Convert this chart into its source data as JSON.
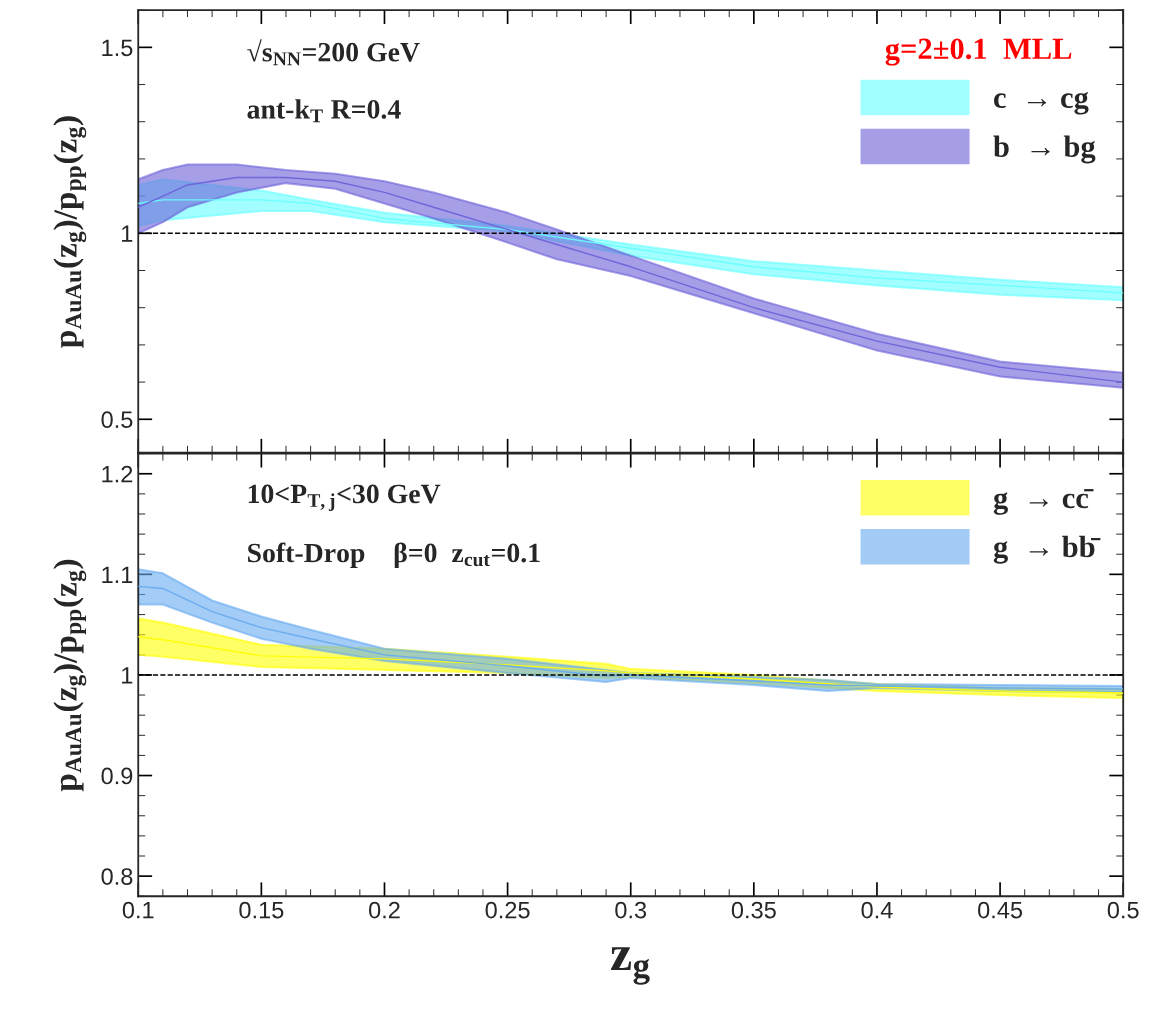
{
  "chart_data": [
    {
      "type": "line",
      "ylabel": "p$_{AuAu}$(z$_{g}$)/p$_{pp}$(z$_{g}$)",
      "legend_title": "g=2±0.1  MLL",
      "legend": "top right",
      "grid": false,
      "tick_labels": "y",
      "xlim": [
        0.1,
        0.5
      ],
      "xticks": [
        0.1,
        0.15,
        0.2,
        0.25,
        0.3,
        0.35,
        0.4,
        0.45,
        0.5
      ],
      "ylim": [
        0.41,
        1.6
      ],
      "yticks": [
        0.5,
        1,
        1.5
      ],
      "annotations": [
        "√s$_{NN}$=200 GeV",
        "ant-k$_{T}$ R=0.4"
      ],
      "ref_lines": [
        {
          "axis": "y",
          "value": 1,
          "line_style": "dashed",
          "color": "#000000"
        }
      ],
      "series": [
        {
          "name": "c  → cg",
          "color": "#66ffff",
          "values": [
            1.08,
            1.09,
            1.09,
            1.08,
            1.04,
            1.01,
            0.96,
            0.91,
            0.88,
            0.86,
            0.84
          ],
          "x": [
            0.1,
            0.11,
            0.15,
            0.17,
            0.2,
            0.25,
            0.3,
            0.35,
            0.4,
            0.45,
            0.5
          ],
          "lower": [
            1.02,
            1.035,
            1.06,
            1.06,
            1.03,
            1.005,
            0.94,
            0.89,
            0.86,
            0.835,
            0.82
          ],
          "upper": [
            1.13,
            1.145,
            1.115,
            1.09,
            1.055,
            1.02,
            0.97,
            0.925,
            0.9,
            0.875,
            0.855
          ]
        },
        {
          "name": "b  → bg",
          "color": "#6a5fd8",
          "values": [
            1.07,
            1.1,
            1.13,
            1.15,
            1.15,
            1.14,
            1.11,
            1.07,
            1.01,
            0.97,
            0.91,
            0.8,
            0.71,
            0.64,
            0.6
          ],
          "x": [
            0.1,
            0.11,
            0.12,
            0.14,
            0.16,
            0.18,
            0.2,
            0.22,
            0.25,
            0.27,
            0.3,
            0.35,
            0.4,
            0.45,
            0.5
          ],
          "lower": [
            1.0,
            1.03,
            1.07,
            1.11,
            1.135,
            1.12,
            1.08,
            1.04,
            0.975,
            0.93,
            0.885,
            0.785,
            0.685,
            0.615,
            0.585
          ],
          "upper": [
            1.145,
            1.17,
            1.185,
            1.185,
            1.17,
            1.16,
            1.14,
            1.11,
            1.055,
            1.01,
            0.94,
            0.825,
            0.73,
            0.655,
            0.625
          ]
        }
      ]
    },
    {
      "type": "line",
      "ylabel": "p$_{AuAu}$(z$_{g}$)/p$_{pp}$(z$_{g}$)",
      "xlabel": "z$_{g}$",
      "legend": "top right",
      "grid": false,
      "xlim": [
        0.1,
        0.5
      ],
      "xticks": [
        0.1,
        0.15,
        0.2,
        0.25,
        0.3,
        0.35,
        0.4,
        0.45,
        0.5
      ],
      "ylim": [
        0.78,
        1.22
      ],
      "yticks": [
        0.8,
        0.9,
        1,
        1.1,
        1.2
      ],
      "annotations": [
        "10<P$_{T,j}$<30 GeV",
        "Soft-Drop    β=0  z$_{cut}$=0.1"
      ],
      "ref_lines": [
        {
          "axis": "y",
          "value": 1,
          "line_style": "dashed",
          "color": "#000000"
        }
      ],
      "series": [
        {
          "name": "g  → cc̄",
          "color": "#ffff00",
          "values": [
            1.038,
            1.035,
            1.019,
            1.016,
            1.01,
            1.004,
            1.002,
            0.996,
            0.988,
            0.984,
            0.982
          ],
          "x": [
            0.1,
            0.11,
            0.15,
            0.2,
            0.25,
            0.29,
            0.3,
            0.35,
            0.4,
            0.45,
            0.5
          ],
          "lower": [
            1.02,
            1.018,
            1.008,
            1.005,
            1.002,
            0.997,
            0.998,
            0.992,
            0.984,
            0.98,
            0.977
          ],
          "upper": [
            1.056,
            1.052,
            1.03,
            1.026,
            1.018,
            1.011,
            1.006,
            1.0,
            0.991,
            0.987,
            0.986
          ]
        },
        {
          "name": "g  → bb̄",
          "color": "#66aaf0",
          "values": [
            1.088,
            1.086,
            1.063,
            1.047,
            1.036,
            1.02,
            1.009,
            0.999,
            1.0,
            0.994,
            0.99,
            0.989,
            0.987,
            0.986
          ],
          "x": [
            0.1,
            0.11,
            0.13,
            0.15,
            0.17,
            0.2,
            0.25,
            0.29,
            0.3,
            0.35,
            0.38,
            0.4,
            0.45,
            0.5
          ],
          "lower": [
            1.07,
            1.07,
            1.052,
            1.036,
            1.026,
            1.014,
            1.002,
            0.993,
            0.997,
            0.99,
            0.984,
            0.987,
            0.984,
            0.983
          ],
          "upper": [
            1.105,
            1.101,
            1.074,
            1.058,
            1.045,
            1.026,
            1.016,
            1.005,
            1.002,
            0.998,
            0.995,
            0.991,
            0.99,
            0.989
          ]
        }
      ]
    }
  ]
}
